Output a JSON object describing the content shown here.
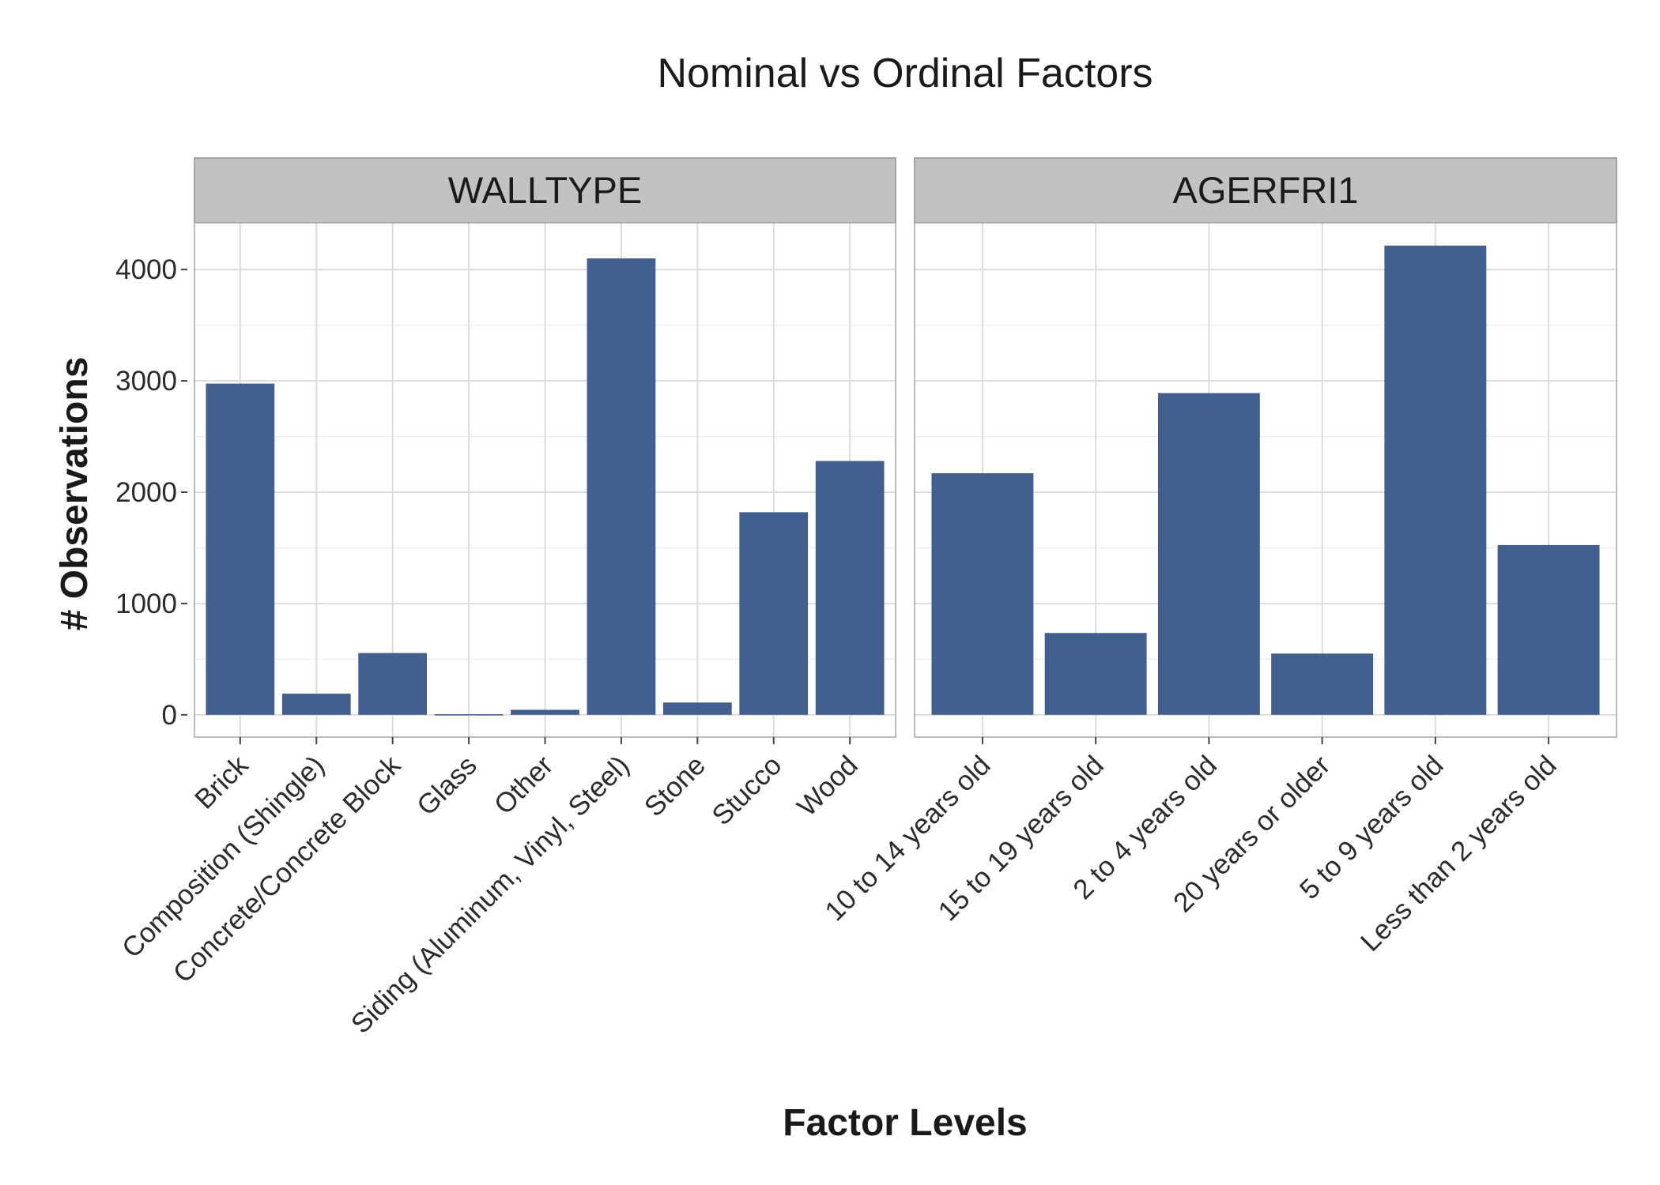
{
  "chart_data": {
    "type": "bar",
    "title": "Nominal vs Ordinal Factors",
    "xlabel": "Factor Levels",
    "ylabel": "# Observations",
    "ylim": [
      -200,
      4420
    ],
    "y_ticks": [
      "0",
      "1000",
      "2000",
      "3000",
      "4000"
    ],
    "grid": true,
    "bar_color": "#3b5b8c",
    "panels": [
      {
        "name": "WALLTYPE",
        "categories": [
          "Brick",
          "Composition (Shingle)",
          "Concrete/Concrete Block",
          "Glass",
          "Other",
          "Siding (Aluminum, Vinyl, Steel)",
          "Stone",
          "Stucco",
          "Wood"
        ],
        "values": [
          2975,
          190,
          555,
          5,
          45,
          4100,
          110,
          1820,
          2280
        ]
      },
      {
        "name": "AGERFRI1",
        "categories": [
          "10 to 14 years old",
          "15 to 19 years old",
          "2 to 4 years old",
          "20 years or older",
          "5 to 9 years old",
          "Less than 2 years old"
        ],
        "values": [
          2170,
          735,
          2890,
          550,
          4215,
          1525
        ]
      }
    ]
  }
}
